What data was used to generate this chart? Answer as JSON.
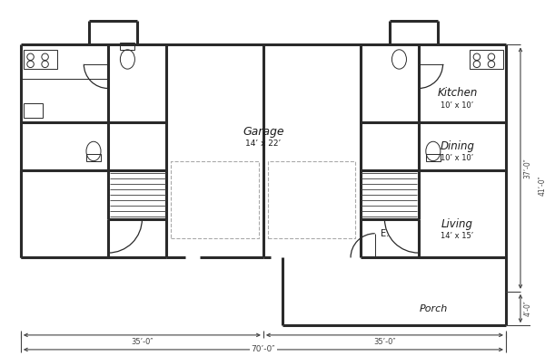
{
  "bg_color": "#ffffff",
  "wall_color": "#2a2a2a",
  "wall_lw": 2.2,
  "thin_lw": 0.7,
  "dashed_color": "#aaaaaa",
  "text_color": "#1a1a1a",
  "dim_color": "#444444",
  "fig_w": 6.0,
  "fig_h": 3.93,
  "rooms": {
    "garage": {
      "label": "Garage",
      "sub": "14’ x 22’"
    },
    "kitchen": {
      "label": "Kitchen",
      "sub": "10’ x 10’"
    },
    "dining": {
      "label": "Dining",
      "sub": "10’ x 10’"
    },
    "living": {
      "label": "Living",
      "sub": "14’ x 15’"
    },
    "porch": {
      "label": "Porch"
    },
    "entry": {
      "label": "E."
    }
  },
  "dims": {
    "left": "35’-0″",
    "right": "35’-0″",
    "total": "70’-0″",
    "height1": "37’-0″",
    "height2": "41’-0″",
    "porch_h": "4’-0″"
  }
}
